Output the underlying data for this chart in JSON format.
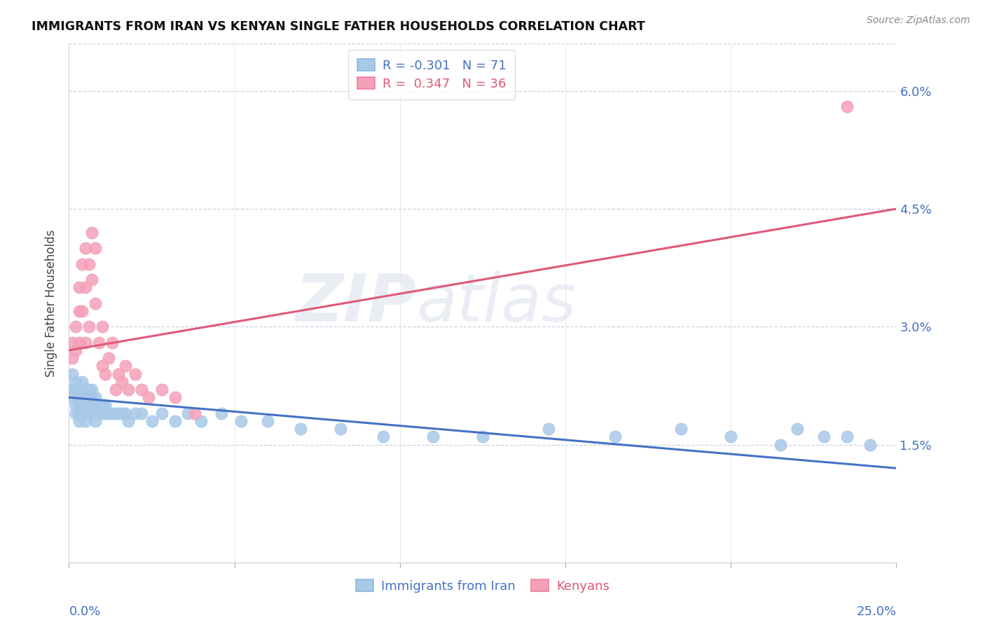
{
  "title": "IMMIGRANTS FROM IRAN VS KENYAN SINGLE FATHER HOUSEHOLDS CORRELATION CHART",
  "source": "Source: ZipAtlas.com",
  "ylabel": "Single Father Households",
  "y_ticks": [
    0.0,
    0.015,
    0.03,
    0.045,
    0.06
  ],
  "y_tick_labels": [
    "",
    "1.5%",
    "3.0%",
    "4.5%",
    "6.0%"
  ],
  "x_lim": [
    0.0,
    0.25
  ],
  "y_lim": [
    0.0,
    0.066
  ],
  "legend_iran_R": "-0.301",
  "legend_iran_N": "71",
  "legend_kenyan_R": "0.347",
  "legend_kenyan_N": "36",
  "iran_color": "#a8c8e8",
  "kenyan_color": "#f4a0b8",
  "iran_line_color": "#4472c4",
  "kenyan_line_color": "#e05878",
  "background_color": "#ffffff",
  "watermark_zip": "ZIP",
  "watermark_atlas": "atlas",
  "iran_x": [
    0.001,
    0.001,
    0.001,
    0.002,
    0.002,
    0.002,
    0.002,
    0.003,
    0.003,
    0.003,
    0.003,
    0.003,
    0.004,
    0.004,
    0.004,
    0.004,
    0.004,
    0.005,
    0.005,
    0.005,
    0.005,
    0.005,
    0.006,
    0.006,
    0.006,
    0.006,
    0.007,
    0.007,
    0.007,
    0.007,
    0.008,
    0.008,
    0.008,
    0.008,
    0.009,
    0.009,
    0.01,
    0.01,
    0.011,
    0.011,
    0.012,
    0.013,
    0.014,
    0.015,
    0.016,
    0.017,
    0.018,
    0.02,
    0.022,
    0.025,
    0.028,
    0.032,
    0.036,
    0.04,
    0.046,
    0.052,
    0.06,
    0.07,
    0.082,
    0.095,
    0.11,
    0.125,
    0.145,
    0.165,
    0.185,
    0.2,
    0.215,
    0.22,
    0.228,
    0.235,
    0.242
  ],
  "iran_y": [
    0.024,
    0.022,
    0.021,
    0.023,
    0.022,
    0.02,
    0.019,
    0.022,
    0.021,
    0.02,
    0.019,
    0.018,
    0.023,
    0.022,
    0.021,
    0.02,
    0.019,
    0.022,
    0.021,
    0.02,
    0.019,
    0.018,
    0.022,
    0.021,
    0.02,
    0.019,
    0.022,
    0.021,
    0.02,
    0.019,
    0.021,
    0.02,
    0.019,
    0.018,
    0.02,
    0.019,
    0.02,
    0.019,
    0.02,
    0.019,
    0.019,
    0.019,
    0.019,
    0.019,
    0.019,
    0.019,
    0.018,
    0.019,
    0.019,
    0.018,
    0.019,
    0.018,
    0.019,
    0.018,
    0.019,
    0.018,
    0.018,
    0.017,
    0.017,
    0.016,
    0.016,
    0.016,
    0.017,
    0.016,
    0.017,
    0.016,
    0.015,
    0.017,
    0.016,
    0.016,
    0.015
  ],
  "kenyan_x": [
    0.001,
    0.001,
    0.002,
    0.002,
    0.003,
    0.003,
    0.003,
    0.004,
    0.004,
    0.005,
    0.005,
    0.005,
    0.006,
    0.006,
    0.007,
    0.007,
    0.008,
    0.008,
    0.009,
    0.01,
    0.01,
    0.011,
    0.012,
    0.013,
    0.014,
    0.015,
    0.016,
    0.017,
    0.018,
    0.02,
    0.022,
    0.024,
    0.028,
    0.032,
    0.038,
    0.235
  ],
  "kenyan_y": [
    0.028,
    0.026,
    0.03,
    0.027,
    0.035,
    0.032,
    0.028,
    0.038,
    0.032,
    0.04,
    0.035,
    0.028,
    0.038,
    0.03,
    0.042,
    0.036,
    0.04,
    0.033,
    0.028,
    0.03,
    0.025,
    0.024,
    0.026,
    0.028,
    0.022,
    0.024,
    0.023,
    0.025,
    0.022,
    0.024,
    0.022,
    0.021,
    0.022,
    0.021,
    0.019,
    0.058
  ]
}
